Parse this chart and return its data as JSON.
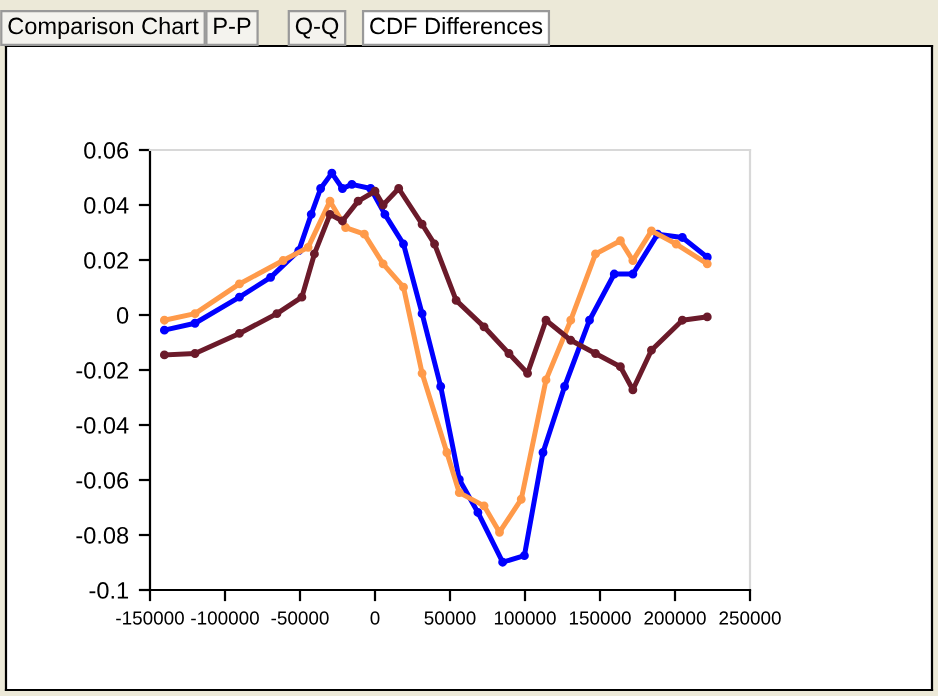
{
  "chart_data": {
    "type": "line",
    "marker": "circle",
    "line_style": "solid",
    "grid": false,
    "annotations": [
      "Comparison Chart",
      "P-P",
      "Q-Q",
      "CDF Differences"
    ],
    "xlim": [
      -150000,
      250000
    ],
    "xticks": [
      -150000,
      -100000,
      -50000,
      0,
      50000,
      100000,
      150000,
      200000,
      250000
    ],
    "ylim": [
      -0.1,
      0.06
    ],
    "yticks": [
      -0.1,
      -0.08,
      -0.06,
      -0.04,
      -0.02,
      0,
      0.02,
      0.04,
      0.06
    ],
    "series": [
      {
        "color": "#0000ff",
        "x": [
          -140400,
          -120000,
          -90400,
          -69600,
          -50800,
          -42500,
          -36250,
          -28750,
          -21700,
          -15400,
          -2900,
          6600,
          19000,
          31400,
          43800,
          56200,
          68600,
          85100,
          99600,
          112000,
          126400,
          143000,
          159500,
          171900,
          188400,
          204900,
          221500
        ],
        "values": [
          -0.0055,
          -0.003,
          0.0065,
          0.0137,
          0.0234,
          0.0366,
          0.046,
          0.0516,
          0.046,
          0.0475,
          0.046,
          0.0366,
          0.0258,
          0.0005,
          -0.026,
          -0.0598,
          -0.0718,
          -0.0899,
          -0.0875,
          -0.05,
          -0.026,
          -0.0019,
          0.0149,
          0.0149,
          0.0294,
          0.0282,
          0.021
        ]
      },
      {
        "color": "#ff9a4a",
        "x": [
          -140400,
          -120000,
          -90400,
          -61300,
          -44600,
          -30000,
          -19600,
          -7100,
          5400,
          19000,
          31400,
          47900,
          56200,
          72700,
          83000,
          97500,
          114000,
          130500,
          147000,
          163600,
          171900,
          184300,
          200800,
          221500
        ],
        "values": [
          -0.0019,
          0.0005,
          0.0113,
          0.0198,
          0.0246,
          0.0414,
          0.0318,
          0.0294,
          0.0186,
          0.0101,
          -0.0212,
          -0.05,
          -0.0646,
          -0.0694,
          -0.079,
          -0.067,
          -0.0236,
          -0.0019,
          0.0222,
          0.027,
          0.0198,
          0.0306,
          0.0258,
          0.0186
        ]
      },
      {
        "color": "#6b1a2a",
        "x": [
          -140400,
          -120000,
          -90400,
          -65400,
          -48750,
          -40400,
          -30000,
          -21700,
          -11250,
          0,
          5400,
          15800,
          31400,
          39700,
          54100,
          72700,
          89300,
          101700,
          114000,
          130500,
          147000,
          163600,
          171900,
          184300,
          204900,
          221500
        ],
        "values": [
          -0.0145,
          -0.014,
          -0.0067,
          0.0005,
          0.0065,
          0.0222,
          0.0366,
          0.0342,
          0.0414,
          0.045,
          0.04,
          0.046,
          0.033,
          0.0258,
          0.0053,
          -0.0043,
          -0.014,
          -0.0212,
          -0.0019,
          -0.0092,
          -0.014,
          -0.0188,
          -0.0272,
          -0.0128,
          -0.0019,
          -0.0007
        ]
      }
    ]
  }
}
